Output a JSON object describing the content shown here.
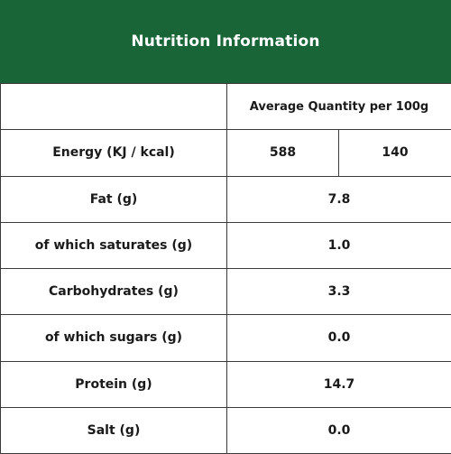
{
  "header": {
    "title": "Nutrition Information",
    "background": "#1a6538",
    "text_color": "#ffffff"
  },
  "table": {
    "column_header": "Average Quantity per 100g",
    "energy": {
      "label": "Energy (KJ / kcal)",
      "kj": "588",
      "kcal": "140"
    },
    "rows": [
      {
        "label": "Fat (g)",
        "value": "7.8"
      },
      {
        "label": "of which saturates (g)",
        "value": "1.0"
      },
      {
        "label": "Carbohydrates (g)",
        "value": "3.3"
      },
      {
        "label": "of which sugars (g)",
        "value": "0.0"
      },
      {
        "label": "Protein (g)",
        "value": "14.7"
      },
      {
        "label": "Salt (g)",
        "value": "0.0"
      }
    ]
  }
}
